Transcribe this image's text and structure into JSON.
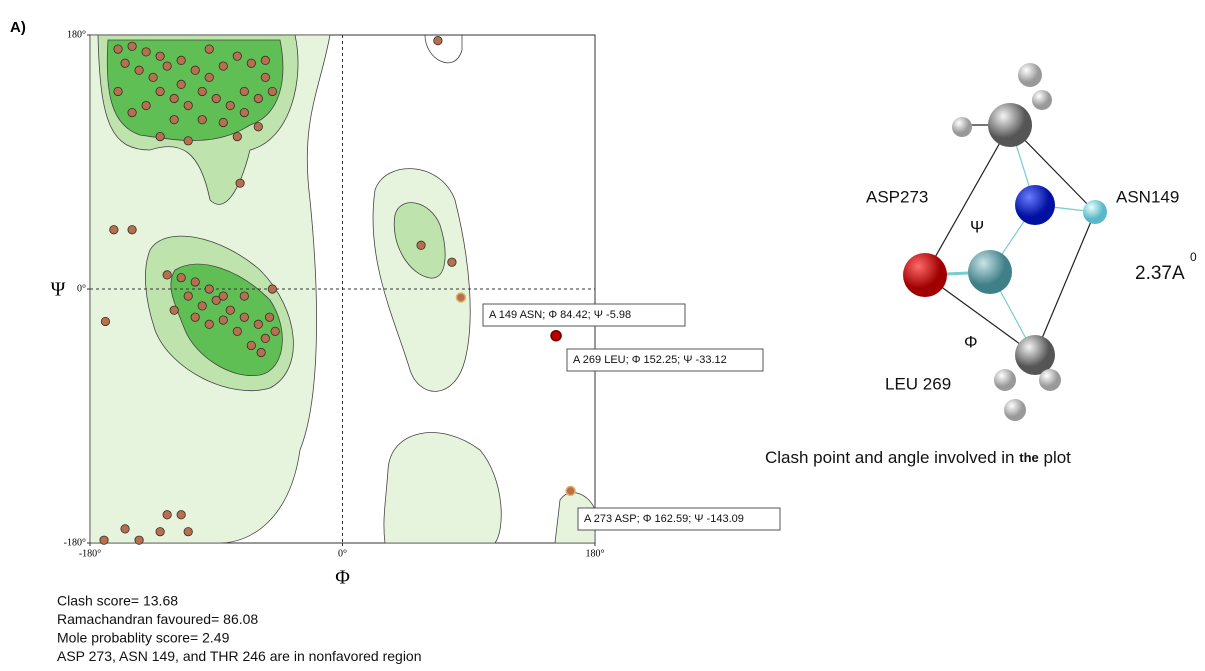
{
  "panel_label": "A)",
  "chart_data": {
    "type": "scatter",
    "x_label": "Φ",
    "y_label": "Ψ",
    "xlim": [
      -180,
      180
    ],
    "ylim": [
      -180,
      180
    ],
    "xticks": [
      {
        "value": -180,
        "label": "-180°"
      },
      {
        "value": 0,
        "label": "0°"
      },
      {
        "value": 180,
        "label": "180°"
      }
    ],
    "yticks": [
      {
        "value": 180,
        "label": "180°"
      },
      {
        "value": 0,
        "label": "0°"
      },
      {
        "value": -180,
        "label": "-180°"
      }
    ],
    "zero_lines": true,
    "color": "#b5714f",
    "x": [
      -160,
      -150,
      -140,
      -130,
      -155,
      -145,
      -135,
      -125,
      -115,
      -105,
      -95,
      -85,
      -75,
      -65,
      -55,
      -50,
      -60,
      -70,
      -80,
      -90,
      -100,
      -110,
      -120,
      -130,
      -140,
      -150,
      -160,
      -120,
      -100,
      -85,
      -70,
      -60,
      -110,
      -130,
      -75,
      -55,
      -115,
      -95,
      -73,
      -163,
      -150,
      -169,
      -115,
      -105,
      -95,
      -110,
      -100,
      -90,
      -80,
      -70,
      -60,
      -55,
      -65,
      -75,
      -85,
      -95,
      -105,
      -125,
      -120,
      -52,
      -48,
      -58,
      -85,
      -70,
      -50,
      56,
      78,
      68,
      -170,
      -155,
      -125,
      -115,
      -130,
      -145,
      -110
    ],
    "values": [
      170,
      172,
      168,
      165,
      160,
      155,
      150,
      158,
      162,
      155,
      150,
      158,
      165,
      160,
      150,
      140,
      135,
      140,
      130,
      135,
      140,
      130,
      135,
      140,
      130,
      125,
      140,
      120,
      120,
      118,
      125,
      115,
      105,
      108,
      108,
      162,
      145,
      170,
      75,
      42,
      42,
      -23,
      8,
      5,
      0,
      -5,
      -12,
      -8,
      -15,
      -20,
      -25,
      -35,
      -40,
      -30,
      -22,
      -25,
      -20,
      10,
      -15,
      -20,
      -30,
      -45,
      -5,
      -5,
      0,
      31,
      19,
      176,
      -178,
      -170,
      -160,
      -160,
      -172,
      -178,
      -172
    ],
    "annotations": [
      {
        "text": "A 149 ASN; Φ 84.42; Ψ -5.98",
        "x": 84.42,
        "y": -5.98
      },
      {
        "text": "A 269 LEU; Φ 152.25; Ψ -33.12",
        "x": 152.25,
        "y": -33.12
      },
      {
        "text": "A 273 ASP; Φ 162.59; Ψ -143.09",
        "x": 162.59,
        "y": -143.09
      }
    ]
  },
  "notes": [
    "Clash score= 13.68",
    "Ramachandran favoured= 86.08",
    "Mole probablity score= 2.49",
    "ASP 273, ASN 149, and THR 246 are in nonfavored region"
  ],
  "molecule": {
    "labels": {
      "asp": "ASP273",
      "asn": "ASN149",
      "psi": "Ψ",
      "distance": "2.37A",
      "distance_sup": "0",
      "phi": "Φ",
      "leu": "LEU 269"
    },
    "caption": {
      "before": "Clash point and angle involved in",
      "small": "the",
      "after": "plot"
    }
  }
}
